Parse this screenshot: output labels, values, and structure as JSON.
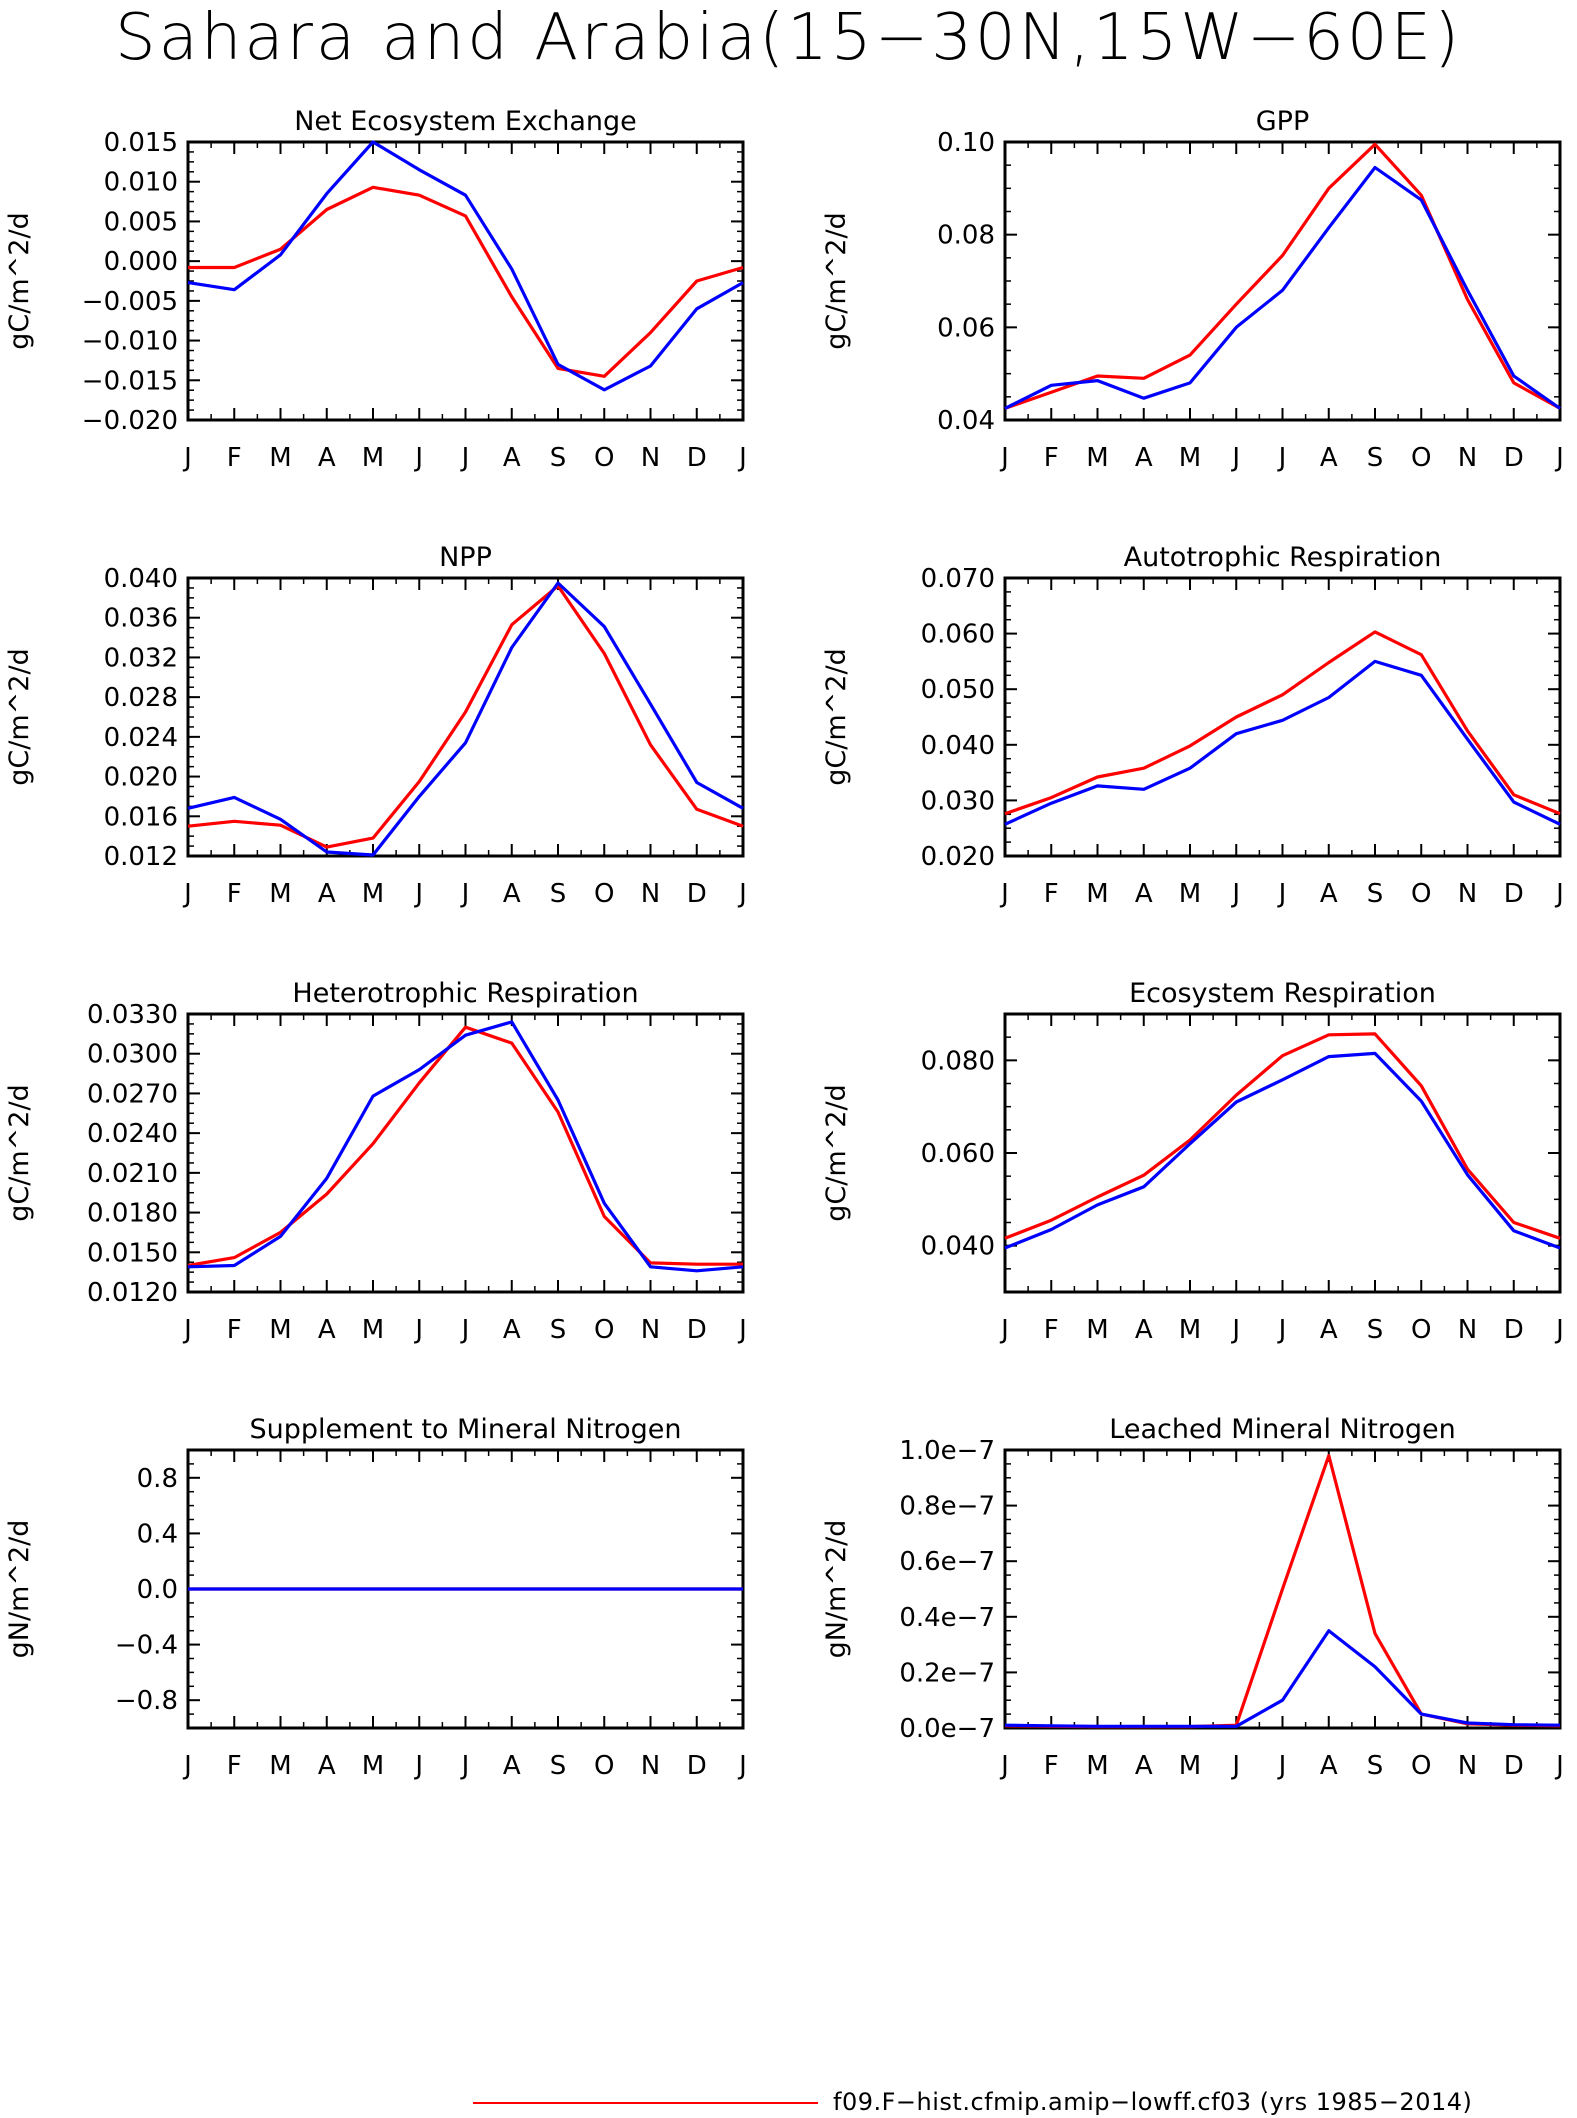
{
  "title": "Sahara and Arabia(15−30N,15W−60E)",
  "months": [
    "J",
    "F",
    "M",
    "A",
    "M",
    "J",
    "J",
    "A",
    "S",
    "O",
    "N",
    "D",
    "J"
  ],
  "colors": {
    "run1": "#ff0000",
    "run2": "#0000ff"
  },
  "legend": [
    {
      "label": "f09.F−hist.cfmip.amip−lowff.cf03 (yrs 1985−2014)",
      "color": "#ff0000"
    }
  ],
  "chart_data": [
    {
      "type": "line",
      "title": "Net Ecosystem Exchange",
      "ylabel": "gC/m^2/d",
      "ylim": [
        -0.02,
        0.015
      ],
      "yticks": [
        "0.015",
        "0.010",
        "0.005",
        "0.000",
        "−0.005",
        "−0.010",
        "−0.015",
        "−0.020"
      ],
      "ytick_values": [
        0.015,
        0.01,
        0.005,
        0.0,
        -0.005,
        -0.01,
        -0.015,
        -0.02
      ],
      "series": [
        {
          "color": "#ff0000",
          "values": [
            -0.0008,
            -0.0008,
            0.0015,
            0.0065,
            0.0093,
            0.0083,
            0.0057,
            -0.0045,
            -0.0135,
            -0.0145,
            -0.009,
            -0.0025,
            -0.0008
          ]
        },
        {
          "color": "#0000ff",
          "values": [
            -0.0027,
            -0.0036,
            0.0008,
            0.0085,
            0.015,
            0.0115,
            0.0083,
            -0.001,
            -0.013,
            -0.0162,
            -0.0132,
            -0.006,
            -0.0027
          ]
        }
      ]
    },
    {
      "type": "line",
      "title": "GPP",
      "ylabel": "gC/m^2/d",
      "ylim": [
        0.04,
        0.1
      ],
      "yticks": [
        "0.10",
        "0.08",
        "0.06",
        "0.04"
      ],
      "ytick_values": [
        0.1,
        0.08,
        0.06,
        0.04
      ],
      "series": [
        {
          "color": "#ff0000",
          "values": [
            0.0425,
            0.046,
            0.0495,
            0.049,
            0.054,
            0.065,
            0.0755,
            0.09,
            0.0995,
            0.0885,
            0.066,
            0.048,
            0.0425
          ]
        },
        {
          "color": "#0000ff",
          "values": [
            0.0425,
            0.0475,
            0.0485,
            0.0447,
            0.048,
            0.06,
            0.068,
            0.0815,
            0.0945,
            0.0875,
            0.068,
            0.0495,
            0.0425
          ]
        }
      ]
    },
    {
      "type": "line",
      "title": "NPP",
      "ylabel": "gC/m^2/d",
      "ylim": [
        0.012,
        0.04
      ],
      "yticks": [
        "0.040",
        "0.036",
        "0.032",
        "0.028",
        "0.024",
        "0.020",
        "0.016",
        "0.012"
      ],
      "ytick_values": [
        0.04,
        0.036,
        0.032,
        0.028,
        0.024,
        0.02,
        0.016,
        0.012
      ],
      "series": [
        {
          "color": "#ff0000",
          "values": [
            0.015,
            0.0155,
            0.0151,
            0.0129,
            0.0138,
            0.0195,
            0.0265,
            0.0353,
            0.0392,
            0.0324,
            0.0232,
            0.0167,
            0.015
          ]
        },
        {
          "color": "#0000ff",
          "values": [
            0.0168,
            0.0179,
            0.0157,
            0.0124,
            0.0121,
            0.018,
            0.0234,
            0.033,
            0.0395,
            0.0351,
            0.0273,
            0.0194,
            0.0168
          ]
        }
      ]
    },
    {
      "type": "line",
      "title": "Autotrophic Respiration",
      "ylabel": "gC/m^2/d",
      "ylim": [
        0.02,
        0.07
      ],
      "yticks": [
        "0.070",
        "0.060",
        "0.050",
        "0.040",
        "0.030",
        "0.020"
      ],
      "ytick_values": [
        0.07,
        0.06,
        0.05,
        0.04,
        0.03,
        0.02
      ],
      "series": [
        {
          "color": "#ff0000",
          "values": [
            0.0276,
            0.0305,
            0.0342,
            0.0358,
            0.0398,
            0.045,
            0.049,
            0.0548,
            0.0603,
            0.0562,
            0.0425,
            0.031,
            0.0276
          ]
        },
        {
          "color": "#0000ff",
          "values": [
            0.0257,
            0.0295,
            0.0326,
            0.032,
            0.0358,
            0.042,
            0.0444,
            0.0485,
            0.055,
            0.0525,
            0.041,
            0.0297,
            0.0257
          ]
        }
      ]
    },
    {
      "type": "line",
      "title": "Heterotrophic Respiration",
      "ylabel": "gC/m^2/d",
      "ylim": [
        0.012,
        0.033
      ],
      "yticks": [
        "0.0330",
        "0.0300",
        "0.0270",
        "0.0240",
        "0.0210",
        "0.0180",
        "0.0150",
        "0.0120"
      ],
      "ytick_values": [
        0.033,
        0.03,
        0.027,
        0.024,
        0.021,
        0.018,
        0.015,
        0.012
      ],
      "series": [
        {
          "color": "#ff0000",
          "values": [
            0.014,
            0.0146,
            0.0165,
            0.0194,
            0.0232,
            0.0278,
            0.032,
            0.0308,
            0.0256,
            0.0177,
            0.0142,
            0.0141,
            0.0141
          ]
        },
        {
          "color": "#0000ff",
          "values": [
            0.0139,
            0.014,
            0.0162,
            0.0206,
            0.0268,
            0.0288,
            0.0314,
            0.0324,
            0.0265,
            0.0187,
            0.0139,
            0.0136,
            0.0139
          ]
        }
      ]
    },
    {
      "type": "line",
      "title": "Ecosystem Respiration",
      "ylabel": "gC/m^2/d",
      "ylim": [
        0.03,
        0.09
      ],
      "yticks": [
        "0.080",
        "0.060",
        "0.040"
      ],
      "ytick_values": [
        0.08,
        0.06,
        0.04
      ],
      "series": [
        {
          "color": "#ff0000",
          "values": [
            0.0416,
            0.0455,
            0.0505,
            0.0552,
            0.0628,
            0.0725,
            0.081,
            0.0855,
            0.0857,
            0.0745,
            0.0565,
            0.045,
            0.0416
          ]
        },
        {
          "color": "#0000ff",
          "values": [
            0.0395,
            0.0435,
            0.0488,
            0.0527,
            0.062,
            0.071,
            0.0758,
            0.0808,
            0.0815,
            0.0712,
            0.0553,
            0.0432,
            0.0395
          ]
        }
      ]
    },
    {
      "type": "line",
      "title": "Supplement to Mineral Nitrogen",
      "ylabel": "gN/m^2/d",
      "ylim": [
        -1.0,
        1.0
      ],
      "yticks": [
        "0.8",
        "0.4",
        "0.0",
        "−0.4",
        "−0.8"
      ],
      "ytick_values": [
        0.8,
        0.4,
        0.0,
        -0.4,
        -0.8
      ],
      "series": [
        {
          "color": "#ff0000",
          "values": [
            0,
            0,
            0,
            0,
            0,
            0,
            0,
            0,
            0,
            0,
            0,
            0,
            0
          ]
        },
        {
          "color": "#0000ff",
          "values": [
            0,
            0,
            0,
            0,
            0,
            0,
            0,
            0,
            0,
            0,
            0,
            0,
            0
          ]
        }
      ]
    },
    {
      "type": "line",
      "title": "Leached Mineral Nitrogen",
      "ylabel": "gN/m^2/d",
      "ylim": [
        0.0,
        1e-07
      ],
      "yticks": [
        "1.0e−7",
        "0.8e−7",
        "0.6e−7",
        "0.4e−7",
        "0.2e−7",
        "0.0e−7"
      ],
      "ytick_values": [
        1e-07,
        8e-08,
        6e-08,
        4e-08,
        2e-08,
        0.0
      ],
      "series": [
        {
          "color": "#ff0000",
          "values": [
            8e-10,
            6e-10,
            5e-10,
            5e-10,
            5e-10,
            1e-09,
            5e-08,
            9.8e-08,
            3.4e-08,
            5e-09,
            1.5e-09,
            1e-09,
            8e-10
          ]
        },
        {
          "color": "#0000ff",
          "values": [
            1e-09,
            8e-10,
            6e-10,
            6e-10,
            6e-10,
            6e-10,
            1e-08,
            3.5e-08,
            2.2e-08,
            5e-09,
            1.8e-09,
            1.2e-09,
            1e-09
          ]
        }
      ]
    }
  ]
}
